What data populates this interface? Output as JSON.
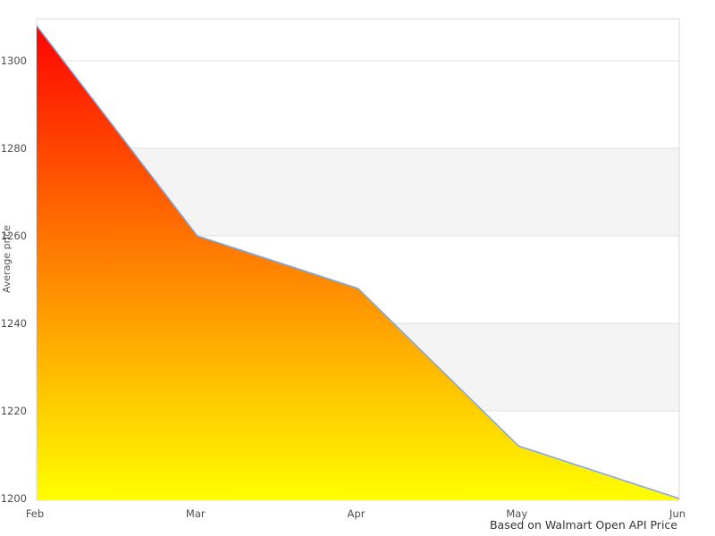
{
  "chart_data": {
    "type": "area",
    "categories": [
      "Feb",
      "Mar",
      "Apr",
      "May",
      "Jun"
    ],
    "values": [
      1308,
      1260,
      1248,
      1212,
      1200
    ],
    "title": "",
    "xlabel": "",
    "ylabel": "Average price",
    "caption": "Based on Walmart Open API Price",
    "ylim": [
      1199.6,
      1309.6
    ],
    "yticks": [
      1200,
      1220,
      1240,
      1260,
      1280,
      1300
    ],
    "shaded_bands": [
      [
        1220,
        1240
      ],
      [
        1260,
        1280
      ]
    ],
    "grid": "on",
    "legend": "off",
    "colors": {
      "gradient_top": "#ff0000",
      "gradient_bottom": "#ffff00",
      "line": "#84a7d8",
      "band": "#f4f4f4",
      "gridline": "#e2e2e2",
      "border": "#d9d9d9",
      "tick_text": "#4d4d4d",
      "caption_text": "#333333",
      "background": "#ffffff"
    }
  }
}
